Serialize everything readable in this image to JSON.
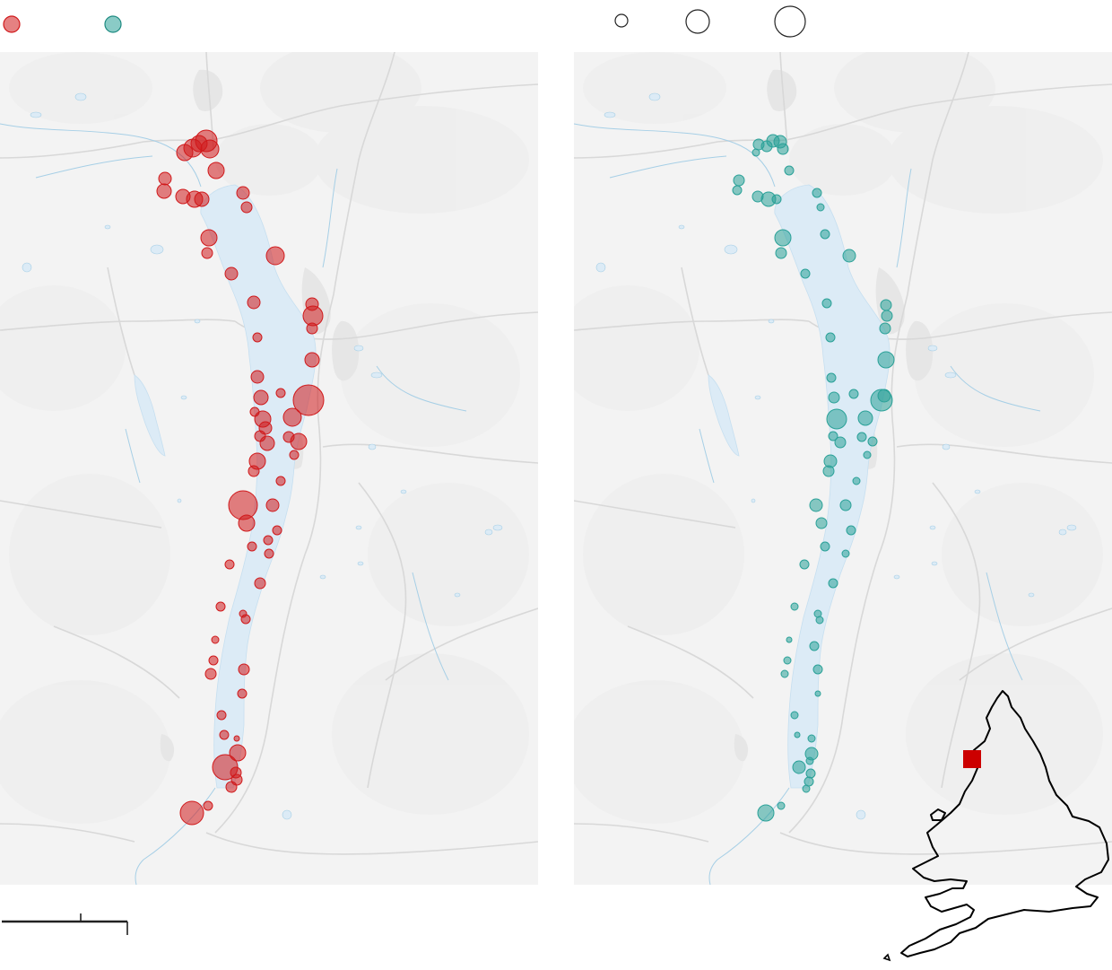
{
  "colors": {
    "series_a": "#d0191b",
    "series_b": "#2aa198",
    "lake": "#dcebf6",
    "land": "#f3f3f3",
    "roads": "#d8d8d8",
    "town": "#e6e6e6",
    "river": "#a6cfe6",
    "outline": "#000000",
    "locator_marker": "#cc0000"
  },
  "legend": {
    "series_a_label": "",
    "series_b_label": "",
    "size_labels": [
      "",
      "",
      ""
    ]
  },
  "scalebar": {
    "label": ""
  },
  "map_left": {
    "series": "a",
    "points": [
      [
        206,
        170,
        9
      ],
      [
        215,
        165,
        10
      ],
      [
        222,
        160,
        9
      ],
      [
        230,
        157,
        12
      ],
      [
        234,
        166,
        10
      ],
      [
        241,
        190,
        9
      ],
      [
        184,
        199,
        7
      ],
      [
        183,
        213,
        8
      ],
      [
        204,
        219,
        8
      ],
      [
        217,
        222,
        9
      ],
      [
        225,
        222,
        8
      ],
      [
        271,
        215,
        7
      ],
      [
        275,
        231,
        6
      ],
      [
        233,
        265,
        9
      ],
      [
        231,
        282,
        6
      ],
      [
        307,
        285,
        10
      ],
      [
        258,
        305,
        7
      ],
      [
        283,
        337,
        7
      ],
      [
        348,
        339,
        7
      ],
      [
        349,
        352,
        11
      ],
      [
        348,
        366,
        6
      ],
      [
        287,
        376,
        5
      ],
      [
        348,
        401,
        8
      ],
      [
        287,
        420,
        7
      ],
      [
        313,
        438,
        5
      ],
      [
        291,
        443,
        8
      ],
      [
        344,
        446,
        17
      ],
      [
        284,
        459,
        5
      ],
      [
        293,
        467,
        9
      ],
      [
        326,
        465,
        10
      ],
      [
        296,
        477,
        7
      ],
      [
        290,
        486,
        6
      ],
      [
        322,
        487,
        6
      ],
      [
        333,
        492,
        9
      ],
      [
        298,
        494,
        8
      ],
      [
        328,
        507,
        5
      ],
      [
        287,
        514,
        9
      ],
      [
        283,
        525,
        6
      ],
      [
        313,
        536,
        5
      ],
      [
        271,
        563,
        16
      ],
      [
        304,
        563,
        7
      ],
      [
        275,
        583,
        9
      ],
      [
        309,
        591,
        5
      ],
      [
        299,
        602,
        5
      ],
      [
        281,
        609,
        5
      ],
      [
        300,
        617,
        5
      ],
      [
        256,
        629,
        5
      ],
      [
        290,
        650,
        6
      ],
      [
        246,
        676,
        5
      ],
      [
        271,
        684,
        4
      ],
      [
        274,
        690,
        5
      ],
      [
        240,
        713,
        4
      ],
      [
        238,
        736,
        5
      ],
      [
        272,
        746,
        6
      ],
      [
        235,
        751,
        6
      ],
      [
        270,
        773,
        5
      ],
      [
        247,
        797,
        5
      ],
      [
        250,
        819,
        5
      ],
      [
        264,
        823,
        3
      ],
      [
        265,
        839,
        9
      ],
      [
        251,
        855,
        14
      ],
      [
        263,
        861,
        6
      ],
      [
        264,
        869,
        6
      ],
      [
        258,
        877,
        6
      ],
      [
        214,
        906,
        13
      ],
      [
        232,
        898,
        5
      ]
    ]
  },
  "map_right": {
    "series": "b",
    "points": [
      [
        846,
        161,
        6
      ],
      [
        855,
        163,
        6
      ],
      [
        862,
        157,
        7
      ],
      [
        870,
        158,
        7
      ],
      [
        873,
        166,
        6
      ],
      [
        843,
        170,
        4
      ],
      [
        880,
        190,
        5
      ],
      [
        824,
        201,
        6
      ],
      [
        822,
        212,
        5
      ],
      [
        845,
        219,
        6
      ],
      [
        857,
        222,
        8
      ],
      [
        866,
        222,
        5
      ],
      [
        911,
        215,
        5
      ],
      [
        915,
        231,
        4
      ],
      [
        873,
        265,
        9
      ],
      [
        871,
        282,
        6
      ],
      [
        920,
        261,
        5
      ],
      [
        947,
        285,
        7
      ],
      [
        898,
        305,
        5
      ],
      [
        922,
        338,
        5
      ],
      [
        988,
        340,
        6
      ],
      [
        989,
        352,
        6
      ],
      [
        987,
        366,
        6
      ],
      [
        926,
        376,
        5
      ],
      [
        988,
        401,
        9
      ],
      [
        927,
        421,
        5
      ],
      [
        930,
        443,
        6
      ],
      [
        983,
        446,
        12
      ],
      [
        952,
        439,
        5
      ],
      [
        986,
        441,
        7
      ],
      [
        933,
        467,
        11
      ],
      [
        965,
        466,
        8
      ],
      [
        929,
        486,
        5
      ],
      [
        937,
        493,
        6
      ],
      [
        961,
        487,
        5
      ],
      [
        973,
        492,
        5
      ],
      [
        967,
        507,
        4
      ],
      [
        926,
        514,
        7
      ],
      [
        924,
        525,
        6
      ],
      [
        955,
        536,
        4
      ],
      [
        910,
        563,
        7
      ],
      [
        943,
        563,
        6
      ],
      [
        916,
        583,
        6
      ],
      [
        949,
        591,
        5
      ],
      [
        920,
        609,
        5
      ],
      [
        943,
        617,
        4
      ],
      [
        897,
        629,
        5
      ],
      [
        929,
        650,
        5
      ],
      [
        886,
        676,
        4
      ],
      [
        912,
        684,
        4
      ],
      [
        914,
        691,
        4
      ],
      [
        880,
        713,
        3
      ],
      [
        908,
        720,
        5
      ],
      [
        878,
        736,
        4
      ],
      [
        912,
        746,
        5
      ],
      [
        875,
        751,
        4
      ],
      [
        912,
        773,
        3
      ],
      [
        886,
        797,
        4
      ],
      [
        889,
        819,
        3
      ],
      [
        905,
        823,
        4
      ],
      [
        905,
        840,
        7
      ],
      [
        903,
        848,
        4
      ],
      [
        891,
        855,
        7
      ],
      [
        904,
        862,
        5
      ],
      [
        902,
        871,
        5
      ],
      [
        899,
        879,
        4
      ],
      [
        854,
        906,
        9
      ],
      [
        871,
        898,
        4
      ]
    ]
  }
}
